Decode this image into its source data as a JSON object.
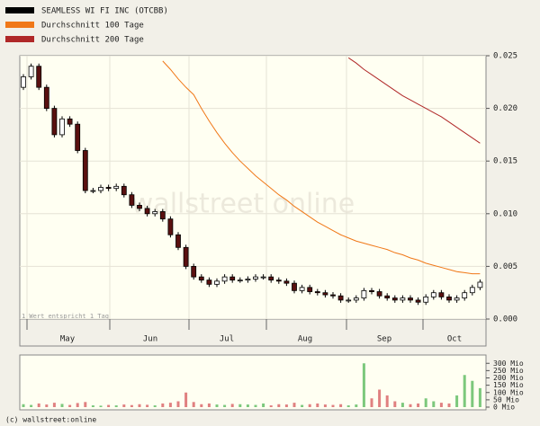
{
  "chart_data": {
    "type": "candlestick",
    "legend": [
      {
        "name": "SEAMLESS WI FI INC (OTCBB)",
        "color": "#000000"
      },
      {
        "name": "Durchschnitt 100 Tage",
        "color": "#f07818"
      },
      {
        "name": "Durchschnitt 200 Tage",
        "color": "#b02828"
      }
    ],
    "months": [
      "May",
      "Jun",
      "Jul",
      "Aug",
      "Sep",
      "Oct"
    ],
    "note": "1 Wert entspricht 1 Tag",
    "watermark": "wallstreet online",
    "footer": "(c) wallstreet:online",
    "open": [
      0.022,
      0.023,
      0.024,
      0.022,
      0.02,
      0.0175,
      0.019,
      0.0185,
      0.016,
      0.0122,
      0.0122,
      0.0125,
      0.0124,
      0.0126,
      0.0118,
      0.0108,
      0.0105,
      0.01,
      0.0102,
      0.0095,
      0.008,
      0.0068,
      0.005,
      0.004,
      0.0037,
      0.0033,
      0.0036,
      0.004,
      0.0037,
      0.0037,
      0.0038,
      0.004,
      0.004,
      0.0037,
      0.0036,
      0.0034,
      0.0027,
      0.003,
      0.0026,
      0.0025,
      0.0023,
      0.0022,
      0.0018,
      0.0018,
      0.002,
      0.0027,
      0.0026,
      0.0022,
      0.002,
      0.0018,
      0.002,
      0.0018,
      0.0016,
      0.0021,
      0.0025,
      0.0021,
      0.0018,
      0.002,
      0.0025,
      0.003
    ],
    "close": [
      0.023,
      0.024,
      0.022,
      0.02,
      0.0175,
      0.019,
      0.0185,
      0.016,
      0.0122,
      0.0122,
      0.0125,
      0.0124,
      0.0126,
      0.0118,
      0.0108,
      0.0105,
      0.01,
      0.0102,
      0.0095,
      0.008,
      0.0068,
      0.005,
      0.004,
      0.0037,
      0.0033,
      0.0036,
      0.004,
      0.0037,
      0.0037,
      0.0038,
      0.004,
      0.004,
      0.0037,
      0.0036,
      0.0034,
      0.0027,
      0.003,
      0.0026,
      0.0025,
      0.0023,
      0.0022,
      0.0018,
      0.0018,
      0.002,
      0.0027,
      0.0026,
      0.0022,
      0.002,
      0.0018,
      0.002,
      0.0018,
      0.0016,
      0.0021,
      0.0025,
      0.0021,
      0.0018,
      0.002,
      0.0025,
      0.003,
      0.0035
    ],
    "ma100": [
      null,
      null,
      null,
      null,
      null,
      null,
      null,
      null,
      null,
      null,
      null,
      null,
      null,
      null,
      null,
      null,
      null,
      null,
      0.0245,
      0.0237,
      0.0228,
      0.022,
      0.0213,
      0.02,
      0.0188,
      0.0177,
      0.0167,
      0.0158,
      0.015,
      0.0143,
      0.0136,
      0.013,
      0.0124,
      0.0118,
      0.0113,
      0.0107,
      0.0102,
      0.0097,
      0.0092,
      0.0088,
      0.0084,
      0.008,
      0.0077,
      0.0074,
      0.0072,
      0.007,
      0.0068,
      0.0066,
      0.0063,
      0.0061,
      0.0058,
      0.0056,
      0.0053,
      0.0051,
      0.0049,
      0.0047,
      0.0045,
      0.0044,
      0.0043,
      0.0043
    ],
    "ma200": [
      null,
      null,
      null,
      null,
      null,
      null,
      null,
      null,
      null,
      null,
      null,
      null,
      null,
      null,
      null,
      null,
      null,
      null,
      null,
      null,
      null,
      null,
      null,
      null,
      null,
      null,
      null,
      null,
      null,
      null,
      null,
      null,
      null,
      null,
      null,
      null,
      null,
      null,
      null,
      null,
      null,
      null,
      0.0248,
      0.0243,
      0.0237,
      0.0232,
      0.0227,
      0.0222,
      0.0217,
      0.0212,
      0.0208,
      0.0204,
      0.02,
      0.0196,
      0.0192,
      0.0187,
      0.0182,
      0.0177,
      0.0172,
      0.0167
    ],
    "volume": [
      20,
      15,
      25,
      18,
      30,
      22,
      15,
      28,
      35,
      12,
      10,
      15,
      12,
      18,
      14,
      20,
      16,
      12,
      25,
      30,
      40,
      100,
      35,
      20,
      25,
      18,
      15,
      22,
      20,
      18,
      15,
      25,
      12,
      20,
      18,
      30,
      15,
      20,
      25,
      18,
      15,
      20,
      12,
      18,
      300,
      60,
      120,
      80,
      40,
      30,
      20,
      25,
      60,
      40,
      30,
      25,
      80,
      220,
      180,
      130
    ],
    "ylim": [
      0,
      0.025
    ],
    "yticks": [
      {
        "value": 0,
        "label": "0.000"
      },
      {
        "value": 0.005,
        "label": "0.005"
      },
      {
        "value": 0.01,
        "label": "0.010"
      },
      {
        "value": 0.015,
        "label": "0.015"
      },
      {
        "value": 0.02,
        "label": "0.020"
      },
      {
        "value": 0.025,
        "label": "0.025"
      }
    ],
    "vlim": [
      0,
      320
    ],
    "vticks": [
      {
        "value": 0,
        "label": "0 Mio"
      },
      {
        "value": 50,
        "label": "50 Mio"
      },
      {
        "value": 100,
        "label": "100 Mio"
      },
      {
        "value": 150,
        "label": "150 Mio"
      },
      {
        "value": 200,
        "label": "200 Mio"
      },
      {
        "value": 250,
        "label": "250 Mio"
      },
      {
        "value": 300,
        "label": "300 Mio"
      }
    ]
  }
}
